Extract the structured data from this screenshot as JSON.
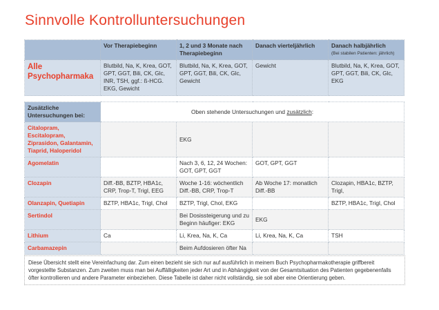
{
  "title": "Sinnvolle Kontrolluntersuchungen",
  "table1": {
    "headers": [
      "",
      "Vor Therapiebeginn",
      "1, 2 und 3 Monate nach Therapiebeginn",
      "Danach vierteljährlich",
      "Danach halbjährlich"
    ],
    "header_note": "(Bei stabilen Patienten: jährlich)",
    "row": {
      "label": "Alle Psychopharmaka",
      "cells": [
        "Blutbild, Na, K, Krea, GOT, GPT, GGT, Bili, CK, Glc, INR, TSH, ggf.: ß-HCG. EKG, Gewicht",
        "Blutbild, Na, K, Krea, GOT, GPT, GGT, Bili, CK, Glc, Gewicht",
        "Gewicht",
        "Blutbild, Na, K, Krea, GOT, GPT, GGT, Bili, CK, Glc, EKG"
      ]
    }
  },
  "table2": {
    "header_label": "Zusätzliche Untersuchungen bei:",
    "header_text": "Oben stehende Untersuchungen und ",
    "header_underlined": "zusätzlich",
    "header_suffix": ":",
    "rows": [
      {
        "label": "Citalopram, Escitalopram, Ziprasidon, Galantamin, Tiaprid, Haloperidol",
        "cells": [
          "",
          "EKG",
          "",
          ""
        ]
      },
      {
        "label": "Agomelatin",
        "cells": [
          "",
          "Nach 3, 6, 12, 24 Wochen: GOT, GPT, GGT",
          "GOT, GPT, GGT",
          ""
        ]
      },
      {
        "label": "Clozapin",
        "cells": [
          "Diff.-BB, BZTP, HBA1c, CRP, Trop-T, Trigl, EEG",
          "Woche 1-16: wöchentlich Diff.-BB, CRP, Trop-T",
          "Ab Woche 17: monatlich Diff.-BB",
          "Clozapin, HBA1c, BZTP, Trigl,"
        ]
      },
      {
        "label": "Olanzapin, Quetiapin",
        "cells": [
          "BZTP, HBA1c, Trigl, Chol",
          "BZTP, Trigl, Chol, EKG",
          "",
          "BZTP, HBA1c, Trigl, Chol"
        ]
      },
      {
        "label": "Sertindol",
        "cells": [
          "",
          "Bei Dosissteigerung und zu Beginn häufiger: EKG",
          "EKG",
          ""
        ]
      },
      {
        "label": "Lithium",
        "cells": [
          "Ca",
          "Li, Krea, Na, K, Ca",
          "Li, Krea, Na, K, Ca",
          "TSH"
        ]
      },
      {
        "label": "Carbamazepin",
        "cells": [
          "",
          "Beim Aufdosieren öfter Na",
          "",
          ""
        ]
      }
    ]
  },
  "note": "Diese Übersicht stellt eine Vereinfachung dar. Zum einen bezieht sie sich nur auf ausführlich in meinem Buch Psychopharmakotherapie griffbereit vorgestellte Substanzen. Zum zweiten muss man bei Auffälligkeiten jeder Art und in Abhängigkeit von der Gesamtsituation des Patienten gegebenenfalls öfter kontrollieren und andere Parameter einbeziehen. Diese Tabelle ist daher nicht vollständig, sie soll aber eine Orientierung geben."
}
